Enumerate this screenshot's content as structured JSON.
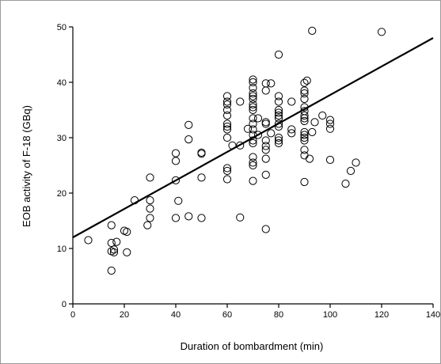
{
  "chart_data": {
    "type": "scatter",
    "xlabel": "Duration of bombardment (min)",
    "ylabel": "EOB activity of F-18 (GBq)",
    "xlim": [
      0,
      140
    ],
    "ylim": [
      0,
      50
    ],
    "x_ticks": [
      "0",
      "20",
      "40",
      "60",
      "80",
      "100",
      "120",
      "140"
    ],
    "y_ticks": [
      "0",
      "10",
      "20",
      "30",
      "40",
      "50"
    ],
    "grid": false,
    "legend": "none",
    "marker": "open-circle",
    "colors": {
      "axis": "#000000",
      "marker": "#000000",
      "line": "#000000",
      "frame": "#9a9a9a"
    },
    "fit_line": {
      "x": [
        0,
        140
      ],
      "y": [
        12.0,
        48.0
      ]
    },
    "points": [
      [
        6,
        11.5
      ],
      [
        15,
        14.2
      ],
      [
        15,
        11.0
      ],
      [
        15,
        6.0
      ],
      [
        15,
        9.5
      ],
      [
        16,
        9.8
      ],
      [
        16,
        9.3
      ],
      [
        17,
        11.2
      ],
      [
        20,
        13.2
      ],
      [
        21,
        13.0
      ],
      [
        21,
        9.3
      ],
      [
        24,
        18.7
      ],
      [
        29,
        14.2
      ],
      [
        30,
        22.8
      ],
      [
        30,
        18.7
      ],
      [
        30,
        17.2
      ],
      [
        30,
        15.5
      ],
      [
        40,
        27.2
      ],
      [
        40,
        25.8
      ],
      [
        40,
        22.3
      ],
      [
        40,
        15.5
      ],
      [
        41,
        18.6
      ],
      [
        45,
        32.3
      ],
      [
        45,
        29.7
      ],
      [
        45,
        15.8
      ],
      [
        50,
        27.3
      ],
      [
        50,
        27.1
      ],
      [
        50,
        22.8
      ],
      [
        50,
        15.5
      ],
      [
        60,
        37.5
      ],
      [
        60,
        36.5
      ],
      [
        60,
        36.0
      ],
      [
        60,
        35.0
      ],
      [
        60,
        34.0
      ],
      [
        60,
        32.5
      ],
      [
        60,
        32.0
      ],
      [
        60,
        31.5
      ],
      [
        60,
        30.0
      ],
      [
        60,
        24.5
      ],
      [
        60,
        24.0
      ],
      [
        60,
        22.5
      ],
      [
        62,
        28.6
      ],
      [
        65,
        36.5
      ],
      [
        65,
        28.6
      ],
      [
        65,
        15.6
      ],
      [
        68,
        31.6
      ],
      [
        70,
        40.5
      ],
      [
        70,
        40.0
      ],
      [
        70,
        39.0
      ],
      [
        70,
        38.0
      ],
      [
        70,
        37.5
      ],
      [
        70,
        37.0
      ],
      [
        70,
        36.0
      ],
      [
        70,
        35.5
      ],
      [
        70,
        35.0
      ],
      [
        70,
        33.5
      ],
      [
        70,
        32.5
      ],
      [
        70,
        31.5
      ],
      [
        70,
        30.5
      ],
      [
        70,
        29.5
      ],
      [
        70,
        29.0
      ],
      [
        70,
        26.5
      ],
      [
        70,
        25.5
      ],
      [
        70,
        25.0
      ],
      [
        70,
        22.2
      ],
      [
        72,
        33.5
      ],
      [
        72,
        30.5
      ],
      [
        75,
        39.8
      ],
      [
        75,
        38.5
      ],
      [
        75,
        32.8
      ],
      [
        75,
        32.5
      ],
      [
        75,
        29.5
      ],
      [
        75,
        28.5
      ],
      [
        75,
        27.8
      ],
      [
        75,
        26.2
      ],
      [
        75,
        23.3
      ],
      [
        75,
        13.5
      ],
      [
        77,
        39.8
      ],
      [
        77,
        30.8
      ],
      [
        80,
        45.0
      ],
      [
        80,
        37.5
      ],
      [
        80,
        36.5
      ],
      [
        80,
        35.0
      ],
      [
        80,
        34.5
      ],
      [
        80,
        34.0
      ],
      [
        80,
        33.5
      ],
      [
        80,
        32.5
      ],
      [
        80,
        32.0
      ],
      [
        80,
        30.0
      ],
      [
        80,
        29.5
      ],
      [
        80,
        29.0
      ],
      [
        85,
        36.5
      ],
      [
        85,
        31.5
      ],
      [
        85,
        30.8
      ],
      [
        90,
        39.9
      ],
      [
        90,
        38.5
      ],
      [
        90,
        38.0
      ],
      [
        90,
        37.0
      ],
      [
        90,
        35.5
      ],
      [
        90,
        34.8
      ],
      [
        90,
        34.0
      ],
      [
        90,
        33.5
      ],
      [
        90,
        33.0
      ],
      [
        90,
        31.0
      ],
      [
        90,
        30.5
      ],
      [
        90,
        30.0
      ],
      [
        90,
        29.5
      ],
      [
        90,
        27.8
      ],
      [
        90,
        26.8
      ],
      [
        90,
        22.0
      ],
      [
        91,
        40.3
      ],
      [
        92,
        26.2
      ],
      [
        93,
        49.3
      ],
      [
        93,
        31.0
      ],
      [
        94,
        32.8
      ],
      [
        97,
        34.0
      ],
      [
        100,
        33.2
      ],
      [
        100,
        32.5
      ],
      [
        100,
        31.6
      ],
      [
        100,
        26.0
      ],
      [
        106,
        21.7
      ],
      [
        108,
        24.0
      ],
      [
        110,
        25.5
      ],
      [
        120,
        49.1
      ]
    ]
  }
}
